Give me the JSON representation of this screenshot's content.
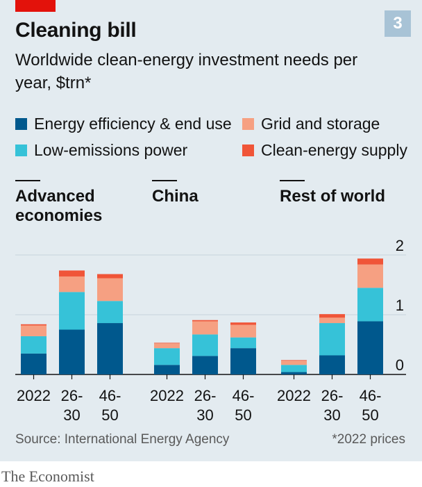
{
  "header": {
    "chart_number": "3",
    "title": "Cleaning bill",
    "subtitle": "Worldwide clean-energy investment needs per year, $trn*"
  },
  "footer": {
    "source": "Source: International Energy Agency",
    "footnote": "*2022 prices",
    "brand": "The Economist"
  },
  "colors": {
    "panel_bg": "#e3ebf0",
    "accent_red": "#e3120b",
    "number_badge": "#a8c3d6",
    "gridline": "#c7d3dc"
  },
  "chart_data": {
    "type": "bar",
    "stacked": true,
    "title": "Cleaning bill",
    "subtitle": "Worldwide clean-energy investment needs per year, $trn*",
    "ylim": [
      0,
      2
    ],
    "yticks": [
      0,
      1,
      2
    ],
    "ytick_labels": [
      "0",
      "1",
      "2"
    ],
    "grid": true,
    "legend_position": "top",
    "series": [
      {
        "name": "Energy efficiency & end use",
        "color": "#00588d"
      },
      {
        "name": "Low-emissions power",
        "color": "#36c2d8"
      },
      {
        "name": "Grid and storage",
        "color": "#f6a082"
      },
      {
        "name": "Clean-energy supply",
        "color": "#f05538"
      }
    ],
    "groups": [
      {
        "title": "Advanced economies",
        "categories": [
          "2022",
          "26-30",
          "46-50"
        ],
        "values": [
          [
            0.35,
            0.29,
            0.18,
            0.02
          ],
          [
            0.75,
            0.63,
            0.26,
            0.1
          ],
          [
            0.86,
            0.37,
            0.38,
            0.07
          ]
        ]
      },
      {
        "title": "China",
        "categories": [
          "2022",
          "26-30",
          "46-50"
        ],
        "values": [
          [
            0.16,
            0.28,
            0.08,
            0.01
          ],
          [
            0.31,
            0.36,
            0.22,
            0.02
          ],
          [
            0.44,
            0.18,
            0.21,
            0.04
          ]
        ]
      },
      {
        "title": "Rest of world",
        "categories": [
          "2022",
          "26-30",
          "46-50"
        ],
        "values": [
          [
            0.04,
            0.12,
            0.07,
            0.01
          ],
          [
            0.32,
            0.54,
            0.09,
            0.06
          ],
          [
            0.89,
            0.56,
            0.39,
            0.1
          ]
        ]
      }
    ]
  }
}
